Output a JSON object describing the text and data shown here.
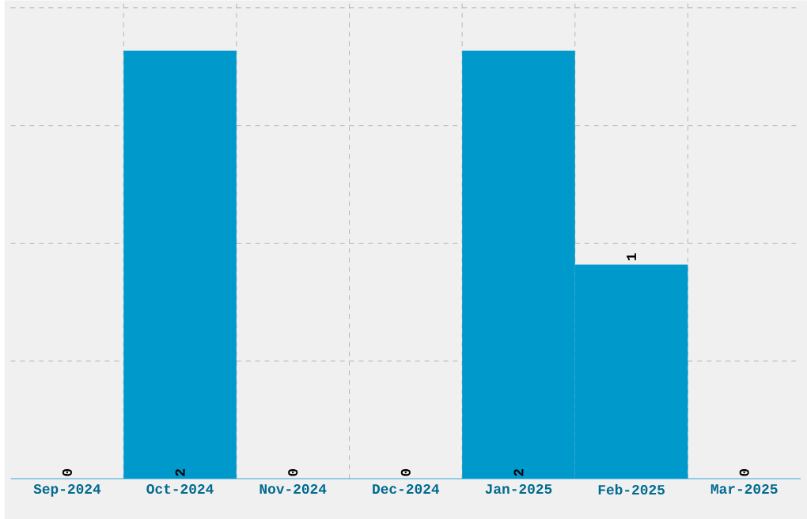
{
  "chart_data": {
    "type": "bar",
    "categories": [
      "Sep-2024",
      "Oct-2024",
      "Nov-2024",
      "Dec-2024",
      "Jan-2025",
      "Feb-2025",
      "Mar-2025"
    ],
    "values": [
      0,
      2,
      0,
      0,
      2,
      1,
      0
    ],
    "color": "#0099cc",
    "ylim": [
      0,
      2.235
    ],
    "yticks": [
      {
        "value": 0.55,
        "label": null
      },
      {
        "value": 1.1,
        "label": null
      },
      {
        "value": 1.65,
        "label": null
      },
      {
        "value": 2.2,
        "label": null
      }
    ],
    "grid": true,
    "data_labels": true,
    "tick_labels": "x"
  }
}
